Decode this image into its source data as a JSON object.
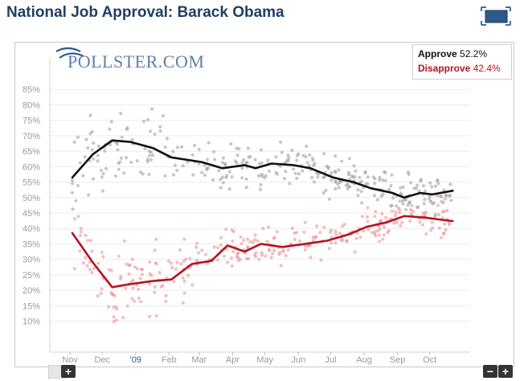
{
  "page": {
    "title": "National Job Approval: Barack Obama"
  },
  "logo": {
    "text": "POLLSTER.COM"
  },
  "legend": [
    {
      "name": "Approve",
      "value": "52.2%",
      "color": "#111111"
    },
    {
      "name": "Disapprove",
      "value": "42.4%",
      "color": "#b3141f"
    }
  ],
  "controls": {
    "zoom_in_label": "+",
    "zoom_out_label": "−",
    "zoom_in2_label": "+"
  },
  "chart_data": {
    "type": "scatter",
    "title": "National Job Approval: Barack Obama",
    "xlabel": "",
    "ylabel": "",
    "x_ticks": [
      "Nov",
      "Dec",
      "'09",
      "Feb",
      "Mar",
      "Apr",
      "May",
      "Jun",
      "Jul",
      "Aug",
      "Sep",
      "Oct"
    ],
    "y_ticks": [
      "10%",
      "15%",
      "20%",
      "25%",
      "30%",
      "35%",
      "40%",
      "45%",
      "50%",
      "55%",
      "60%",
      "65%",
      "70%",
      "75%",
      "80%",
      "85%"
    ],
    "ylim": [
      0,
      90
    ],
    "grid": true,
    "legend_position": "top-right",
    "series": [
      {
        "name": "Approve",
        "color": "#111111",
        "points_color": "#999999",
        "trend": [
          {
            "x": "2008-11-01",
            "y": 56.5
          },
          {
            "x": "2008-11-20",
            "y": 64
          },
          {
            "x": "2008-12-08",
            "y": 68.5
          },
          {
            "x": "2008-12-25",
            "y": 68
          },
          {
            "x": "2009-01-15",
            "y": 66
          },
          {
            "x": "2009-02-01",
            "y": 63
          },
          {
            "x": "2009-03-01",
            "y": 61.5
          },
          {
            "x": "2009-03-20",
            "y": 59.5
          },
          {
            "x": "2009-04-10",
            "y": 60.5
          },
          {
            "x": "2009-04-20",
            "y": 59.5
          },
          {
            "x": "2009-05-05",
            "y": 61
          },
          {
            "x": "2009-05-25",
            "y": 60.5
          },
          {
            "x": "2009-06-10",
            "y": 59.5
          },
          {
            "x": "2009-07-01",
            "y": 56.5
          },
          {
            "x": "2009-07-20",
            "y": 55
          },
          {
            "x": "2009-08-05",
            "y": 53
          },
          {
            "x": "2009-08-25",
            "y": 51.5
          },
          {
            "x": "2009-09-05",
            "y": 50
          },
          {
            "x": "2009-09-20",
            "y": 51.5
          },
          {
            "x": "2009-10-01",
            "y": 51
          },
          {
            "x": "2009-10-20",
            "y": 52.2
          }
        ]
      },
      {
        "name": "Disapprove",
        "color": "#b3141f",
        "points_color": "#e88a92",
        "trend": [
          {
            "x": "2008-11-01",
            "y": 38.5
          },
          {
            "x": "2008-11-20",
            "y": 29
          },
          {
            "x": "2008-12-08",
            "y": 21
          },
          {
            "x": "2008-12-25",
            "y": 22
          },
          {
            "x": "2009-01-15",
            "y": 23
          },
          {
            "x": "2009-02-01",
            "y": 23.5
          },
          {
            "x": "2009-02-20",
            "y": 28.5
          },
          {
            "x": "2009-03-10",
            "y": 29.5
          },
          {
            "x": "2009-03-25",
            "y": 34.5
          },
          {
            "x": "2009-04-10",
            "y": 32.5
          },
          {
            "x": "2009-04-25",
            "y": 35
          },
          {
            "x": "2009-05-15",
            "y": 34
          },
          {
            "x": "2009-06-05",
            "y": 35
          },
          {
            "x": "2009-06-25",
            "y": 36
          },
          {
            "x": "2009-07-15",
            "y": 38
          },
          {
            "x": "2009-08-01",
            "y": 40.5
          },
          {
            "x": "2009-08-20",
            "y": 42
          },
          {
            "x": "2009-09-05",
            "y": 44
          },
          {
            "x": "2009-09-25",
            "y": 43.5
          },
          {
            "x": "2009-10-10",
            "y": 42.8
          },
          {
            "x": "2009-10-20",
            "y": 42.4
          }
        ]
      }
    ]
  }
}
